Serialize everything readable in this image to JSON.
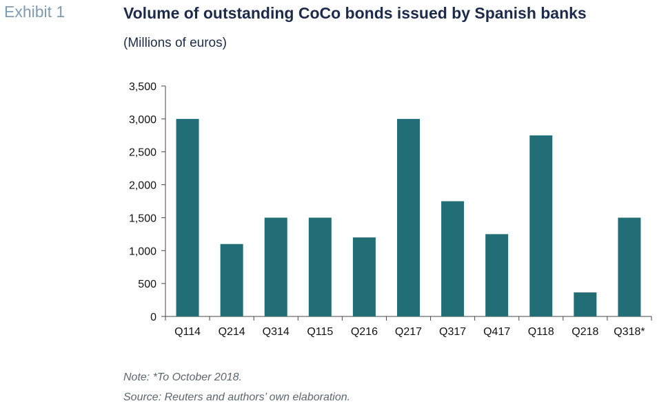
{
  "exhibit_label": "Exhibit 1",
  "note": "Note: *To October 2018.",
  "source": "Source: Reuters and authors’ own elaboration.",
  "colors": {
    "bar": "#226e76",
    "axis": "#444444",
    "title": "#1d2b4b",
    "exhibit": "#7f9bb1"
  },
  "chart_data": {
    "type": "bar",
    "title": "Volume of outstanding CoCo bonds issued by Spanish banks",
    "subtitle": "(Millions of euros)",
    "categories": [
      "Q114",
      "Q214",
      "Q314",
      "Q115",
      "Q216",
      "Q217",
      "Q317",
      "Q417",
      "Q118",
      "Q218",
      "Q318*"
    ],
    "values": [
      3000,
      1100,
      1500,
      1500,
      1200,
      3000,
      1750,
      1250,
      2750,
      365,
      1500
    ],
    "ylim": [
      0,
      3500
    ],
    "yticks": [
      0,
      500,
      1000,
      1500,
      2000,
      2500,
      3000,
      3500
    ],
    "ytick_labels": [
      "0",
      "500",
      "1,000",
      "1,500",
      "2,000",
      "2,500",
      "3,000",
      "3,500"
    ],
    "grid": false,
    "legend": "none"
  }
}
